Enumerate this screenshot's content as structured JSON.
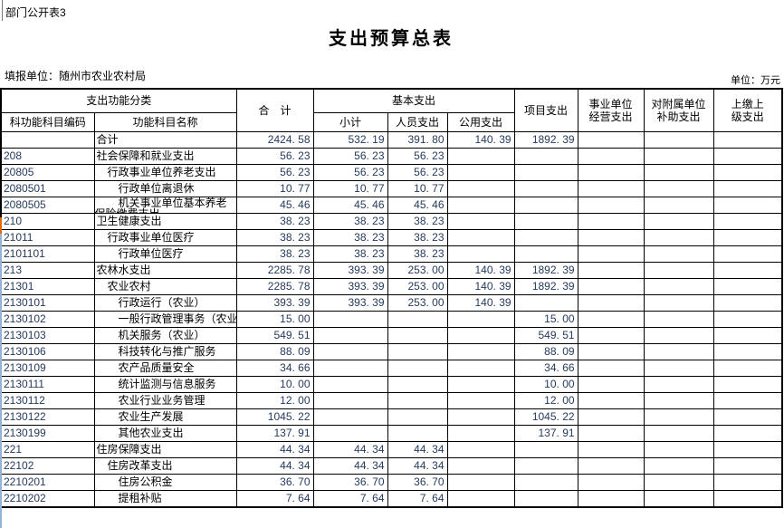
{
  "page": {
    "corner_label": "部门公开表3",
    "title": "支出预算总表",
    "reporting_unit": "填报单位：随州市农业农村局",
    "unit_label": "单位：万元"
  },
  "colors": {
    "number_text": "#253a5e",
    "orange_marker": "#e26b0a",
    "blue_marker": "#95b3d7"
  },
  "table": {
    "header": {
      "function_group": "支出功能分类",
      "code": "科功能科目编码",
      "name": "功能科目名称",
      "total": "合　计",
      "basic_group": "基本支出",
      "basic_subtotal": "小计",
      "personnel": "人员支出",
      "public": "公用支出",
      "project": "项目支出",
      "operating": "事业单位\n经营支出",
      "subsidy": "对附属单位\n补助支出",
      "upper": "上缴上\n级支出"
    },
    "rows": [
      {
        "code": "",
        "name": "合计",
        "indent": 0,
        "total": "2424.58",
        "subtotal": "532.19",
        "personnel": "391.80",
        "public": "140.39",
        "project": "1892.39",
        "operating": "",
        "subsidy": "",
        "upper": ""
      },
      {
        "code": "208",
        "name": "社会保障和就业支出",
        "indent": 0,
        "total": "56.23",
        "subtotal": "56.23",
        "personnel": "56.23",
        "public": "",
        "project": "",
        "operating": "",
        "subsidy": "",
        "upper": ""
      },
      {
        "code": "20805",
        "name": "行政事业单位养老支出",
        "indent": 1,
        "total": "56.23",
        "subtotal": "56.23",
        "personnel": "56.23",
        "public": "",
        "project": "",
        "operating": "",
        "subsidy": "",
        "upper": ""
      },
      {
        "code": "2080501",
        "name": "行政单位离退休",
        "indent": 2,
        "total": "10.77",
        "subtotal": "10.77",
        "personnel": "10.77",
        "public": "",
        "project": "",
        "operating": "",
        "subsidy": "",
        "upper": ""
      },
      {
        "code": "2080505",
        "name": "机关事业单位基本养老保险缴费支出",
        "indent": 2,
        "clip": true,
        "total": "45.46",
        "subtotal": "45.46",
        "personnel": "45.46",
        "public": "",
        "project": "",
        "operating": "",
        "subsidy": "",
        "upper": ""
      },
      {
        "code": "210",
        "name": "卫生健康支出",
        "indent": 0,
        "total": "38.23",
        "subtotal": "38.23",
        "personnel": "38.23",
        "public": "",
        "project": "",
        "operating": "",
        "subsidy": "",
        "upper": ""
      },
      {
        "code": "21011",
        "name": "行政事业单位医疗",
        "indent": 1,
        "total": "38.23",
        "subtotal": "38.23",
        "personnel": "38.23",
        "public": "",
        "project": "",
        "operating": "",
        "subsidy": "",
        "upper": ""
      },
      {
        "code": "2101101",
        "name": "行政单位医疗",
        "indent": 2,
        "total": "38.23",
        "subtotal": "38.23",
        "personnel": "38.23",
        "public": "",
        "project": "",
        "operating": "",
        "subsidy": "",
        "upper": ""
      },
      {
        "code": "213",
        "name": "农林水支出",
        "indent": 0,
        "total": "2285.78",
        "subtotal": "393.39",
        "personnel": "253.00",
        "public": "140.39",
        "project": "1892.39",
        "operating": "",
        "subsidy": "",
        "upper": ""
      },
      {
        "code": "21301",
        "name": "农业农村",
        "indent": 1,
        "total": "2285.78",
        "subtotal": "393.39",
        "personnel": "253.00",
        "public": "140.39",
        "project": "1892.39",
        "operating": "",
        "subsidy": "",
        "upper": ""
      },
      {
        "code": "2130101",
        "name": "行政运行（农业）",
        "indent": 2,
        "total": "393.39",
        "subtotal": "393.39",
        "personnel": "253.00",
        "public": "140.39",
        "project": "",
        "operating": "",
        "subsidy": "",
        "upper": ""
      },
      {
        "code": "2130102",
        "name": "一般行政管理事务（农业）",
        "indent": 2,
        "total": "15.00",
        "subtotal": "",
        "personnel": "",
        "public": "",
        "project": "15.00",
        "operating": "",
        "subsidy": "",
        "upper": ""
      },
      {
        "code": "2130103",
        "name": "机关服务（农业）",
        "indent": 2,
        "total": "549.51",
        "subtotal": "",
        "personnel": "",
        "public": "",
        "project": "549.51",
        "operating": "",
        "subsidy": "",
        "upper": ""
      },
      {
        "code": "2130106",
        "name": "科技转化与推广服务",
        "indent": 2,
        "total": "88.09",
        "subtotal": "",
        "personnel": "",
        "public": "",
        "project": "88.09",
        "operating": "",
        "subsidy": "",
        "upper": ""
      },
      {
        "code": "2130109",
        "name": "农产品质量安全",
        "indent": 2,
        "total": "34.66",
        "subtotal": "",
        "personnel": "",
        "public": "",
        "project": "34.66",
        "operating": "",
        "subsidy": "",
        "upper": ""
      },
      {
        "code": "2130111",
        "name": "统计监测与信息服务",
        "indent": 2,
        "total": "10.00",
        "subtotal": "",
        "personnel": "",
        "public": "",
        "project": "10.00",
        "operating": "",
        "subsidy": "",
        "upper": ""
      },
      {
        "code": "2130112",
        "name": "农业行业业务管理",
        "indent": 2,
        "total": "12.00",
        "subtotal": "",
        "personnel": "",
        "public": "",
        "project": "12.00",
        "operating": "",
        "subsidy": "",
        "upper": ""
      },
      {
        "code": "2130122",
        "name": "农业生产发展",
        "indent": 2,
        "total": "1045.22",
        "subtotal": "",
        "personnel": "",
        "public": "",
        "project": "1045.22",
        "operating": "",
        "subsidy": "",
        "upper": ""
      },
      {
        "code": "2130199",
        "name": "其他农业支出",
        "indent": 2,
        "total": "137.91",
        "subtotal": "",
        "personnel": "",
        "public": "",
        "project": "137.91",
        "operating": "",
        "subsidy": "",
        "upper": ""
      },
      {
        "code": "221",
        "name": "住房保障支出",
        "indent": 0,
        "total": "44.34",
        "subtotal": "44.34",
        "personnel": "44.34",
        "public": "",
        "project": "",
        "operating": "",
        "subsidy": "",
        "upper": ""
      },
      {
        "code": "22102",
        "name": "住房改革支出",
        "indent": 1,
        "total": "44.34",
        "subtotal": "44.34",
        "personnel": "44.34",
        "public": "",
        "project": "",
        "operating": "",
        "subsidy": "",
        "upper": ""
      },
      {
        "code": "2210201",
        "name": "住房公积金",
        "indent": 2,
        "total": "36.70",
        "subtotal": "36.70",
        "personnel": "36.70",
        "public": "",
        "project": "",
        "operating": "",
        "subsidy": "",
        "upper": ""
      },
      {
        "code": "2210202",
        "name": "提租补贴",
        "indent": 2,
        "total": "7.64",
        "subtotal": "7.64",
        "personnel": "7.64",
        "public": "",
        "project": "",
        "operating": "",
        "subsidy": "",
        "upper": ""
      }
    ]
  }
}
